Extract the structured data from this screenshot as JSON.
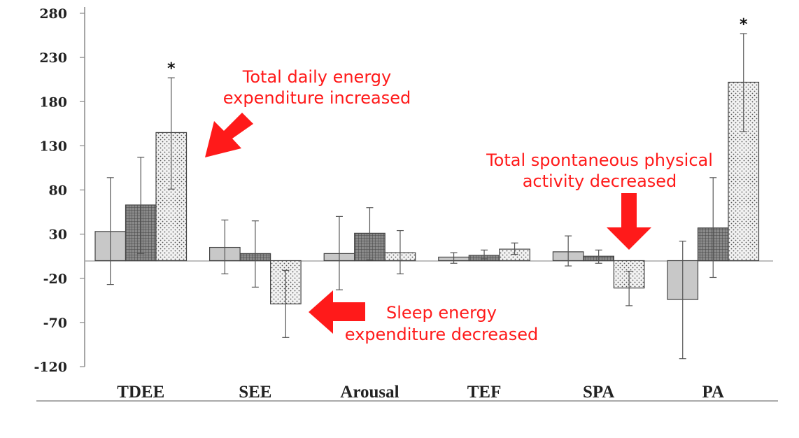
{
  "chart_data": {
    "type": "bar",
    "title": "",
    "xlabel": "",
    "ylabel": "",
    "ylim": [
      -120,
      280
    ],
    "yticks": [
      280,
      230,
      180,
      130,
      80,
      30,
      -20,
      -70,
      -120
    ],
    "ytick_labels": [
      "280",
      "230",
      "180",
      "130",
      "80",
      "30",
      "-20",
      "-70",
      "-120"
    ],
    "categories": [
      "TDEE",
      "SEE",
      "Arousal",
      "TEF",
      "SPA",
      "PA"
    ],
    "series": [
      {
        "name": "series-1",
        "fill": "#c8c8c8",
        "pattern": "solid",
        "values": [
          33,
          15,
          8,
          4,
          10,
          -44
        ],
        "err_low": [
          -27,
          -15,
          -33,
          -3,
          -6,
          -111
        ],
        "err_high": [
          94,
          46,
          50,
          9,
          28,
          22
        ]
      },
      {
        "name": "series-2",
        "fill": "#7f7f7f",
        "pattern": "grid",
        "values": [
          63,
          8,
          31,
          6,
          5,
          37
        ],
        "err_low": [
          8,
          -30,
          1,
          2,
          -3,
          -19
        ],
        "err_high": [
          117,
          45,
          60,
          12,
          12,
          94
        ]
      },
      {
        "name": "series-3",
        "fill": "#eeeeee",
        "pattern": "dots",
        "values": [
          145,
          -49,
          9,
          13,
          -31,
          202
        ],
        "err_low": [
          81,
          -87,
          -15,
          7,
          -51,
          146
        ],
        "err_high": [
          207,
          -11,
          34,
          20,
          -12,
          257
        ]
      }
    ],
    "significance": [
      {
        "category": "TDEE",
        "series": "series-3",
        "label": "*"
      },
      {
        "category": "PA",
        "series": "series-3",
        "label": "*"
      }
    ],
    "annotations": [
      {
        "name": "tdee-annotation",
        "lines": [
          "Total daily energy",
          "expenditure increased"
        ]
      },
      {
        "name": "see-annotation",
        "lines": [
          "Sleep energy",
          "expenditure decreased"
        ]
      },
      {
        "name": "spa-annotation",
        "lines": [
          "Total spontaneous physical",
          "activity decreased"
        ]
      }
    ],
    "annotation_color": "#ff1a1a"
  }
}
